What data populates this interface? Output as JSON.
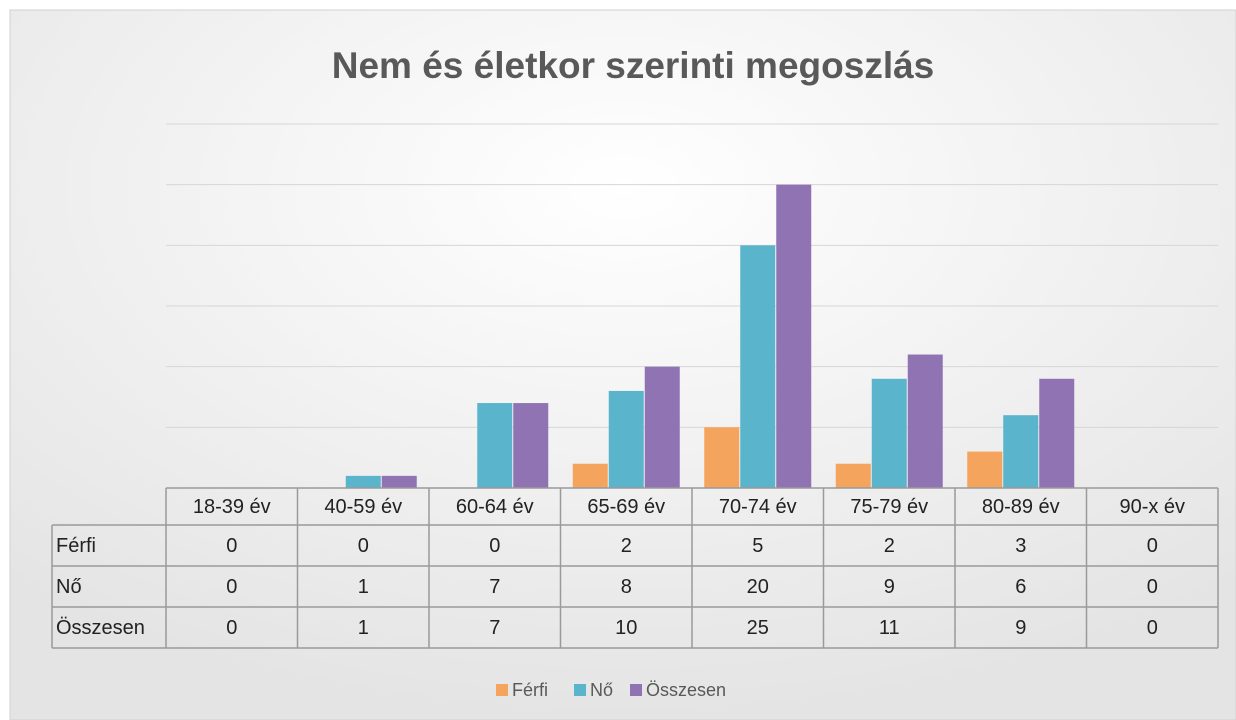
{
  "chart_data": {
    "type": "bar",
    "title": "Nem és életkor szerinti megoszlás",
    "categories": [
      "18-39 év",
      "40-59 év",
      "60-64 év",
      "65-69 év",
      "70-74 év",
      "75-79 év",
      "80-89 év",
      "90-x év"
    ],
    "series": [
      {
        "name": "Férfi",
        "color": "#f5a45d",
        "values": [
          0,
          0,
          0,
          2,
          5,
          2,
          3,
          0
        ]
      },
      {
        "name": "Nő",
        "color": "#5ab4cb",
        "values": [
          0,
          1,
          7,
          8,
          20,
          9,
          6,
          0
        ]
      },
      {
        "name": "Összesen",
        "color": "#9073b3",
        "values": [
          0,
          1,
          7,
          10,
          25,
          11,
          9,
          0
        ]
      }
    ],
    "ylim": [
      0,
      30
    ],
    "yticks": [
      0,
      5,
      10,
      15,
      20,
      25,
      30
    ],
    "grid": true,
    "legend": "bottom"
  }
}
